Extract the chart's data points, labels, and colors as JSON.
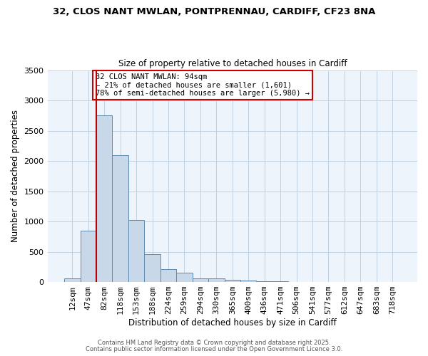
{
  "title_line1": "32, CLOS NANT MWLAN, PONTPRENNAU, CARDIFF, CF23 8NA",
  "title_line2": "Size of property relative to detached houses in Cardiff",
  "xlabel": "Distribution of detached houses by size in Cardiff",
  "ylabel": "Number of detached properties",
  "categories": [
    "12sqm",
    "47sqm",
    "82sqm",
    "118sqm",
    "153sqm",
    "188sqm",
    "224sqm",
    "259sqm",
    "294sqm",
    "330sqm",
    "365sqm",
    "400sqm",
    "436sqm",
    "471sqm",
    "506sqm",
    "541sqm",
    "577sqm",
    "612sqm",
    "647sqm",
    "683sqm",
    "718sqm"
  ],
  "values": [
    60,
    850,
    2750,
    2100,
    1030,
    460,
    215,
    155,
    65,
    55,
    35,
    20,
    10,
    15,
    5,
    3,
    2,
    1,
    1,
    1,
    0
  ],
  "bar_color": "#c8d8e8",
  "bar_edge_color": "#5a8ab0",
  "grid_color": "#c0d0e0",
  "background_color": "#eef4fb",
  "vline_index": 2,
  "vline_color": "#bb0000",
  "annotation_text": "32 CLOS NANT MWLAN: 94sqm\n← 21% of detached houses are smaller (1,601)\n78% of semi-detached houses are larger (5,980) →",
  "annotation_box_color": "#ffffff",
  "annotation_box_edge": "#cc0000",
  "footer_line1": "Contains HM Land Registry data © Crown copyright and database right 2025.",
  "footer_line2": "Contains public sector information licensed under the Open Government Licence 3.0.",
  "ylim": [
    0,
    3500
  ],
  "yticks": [
    0,
    500,
    1000,
    1500,
    2000,
    2500,
    3000,
    3500
  ]
}
